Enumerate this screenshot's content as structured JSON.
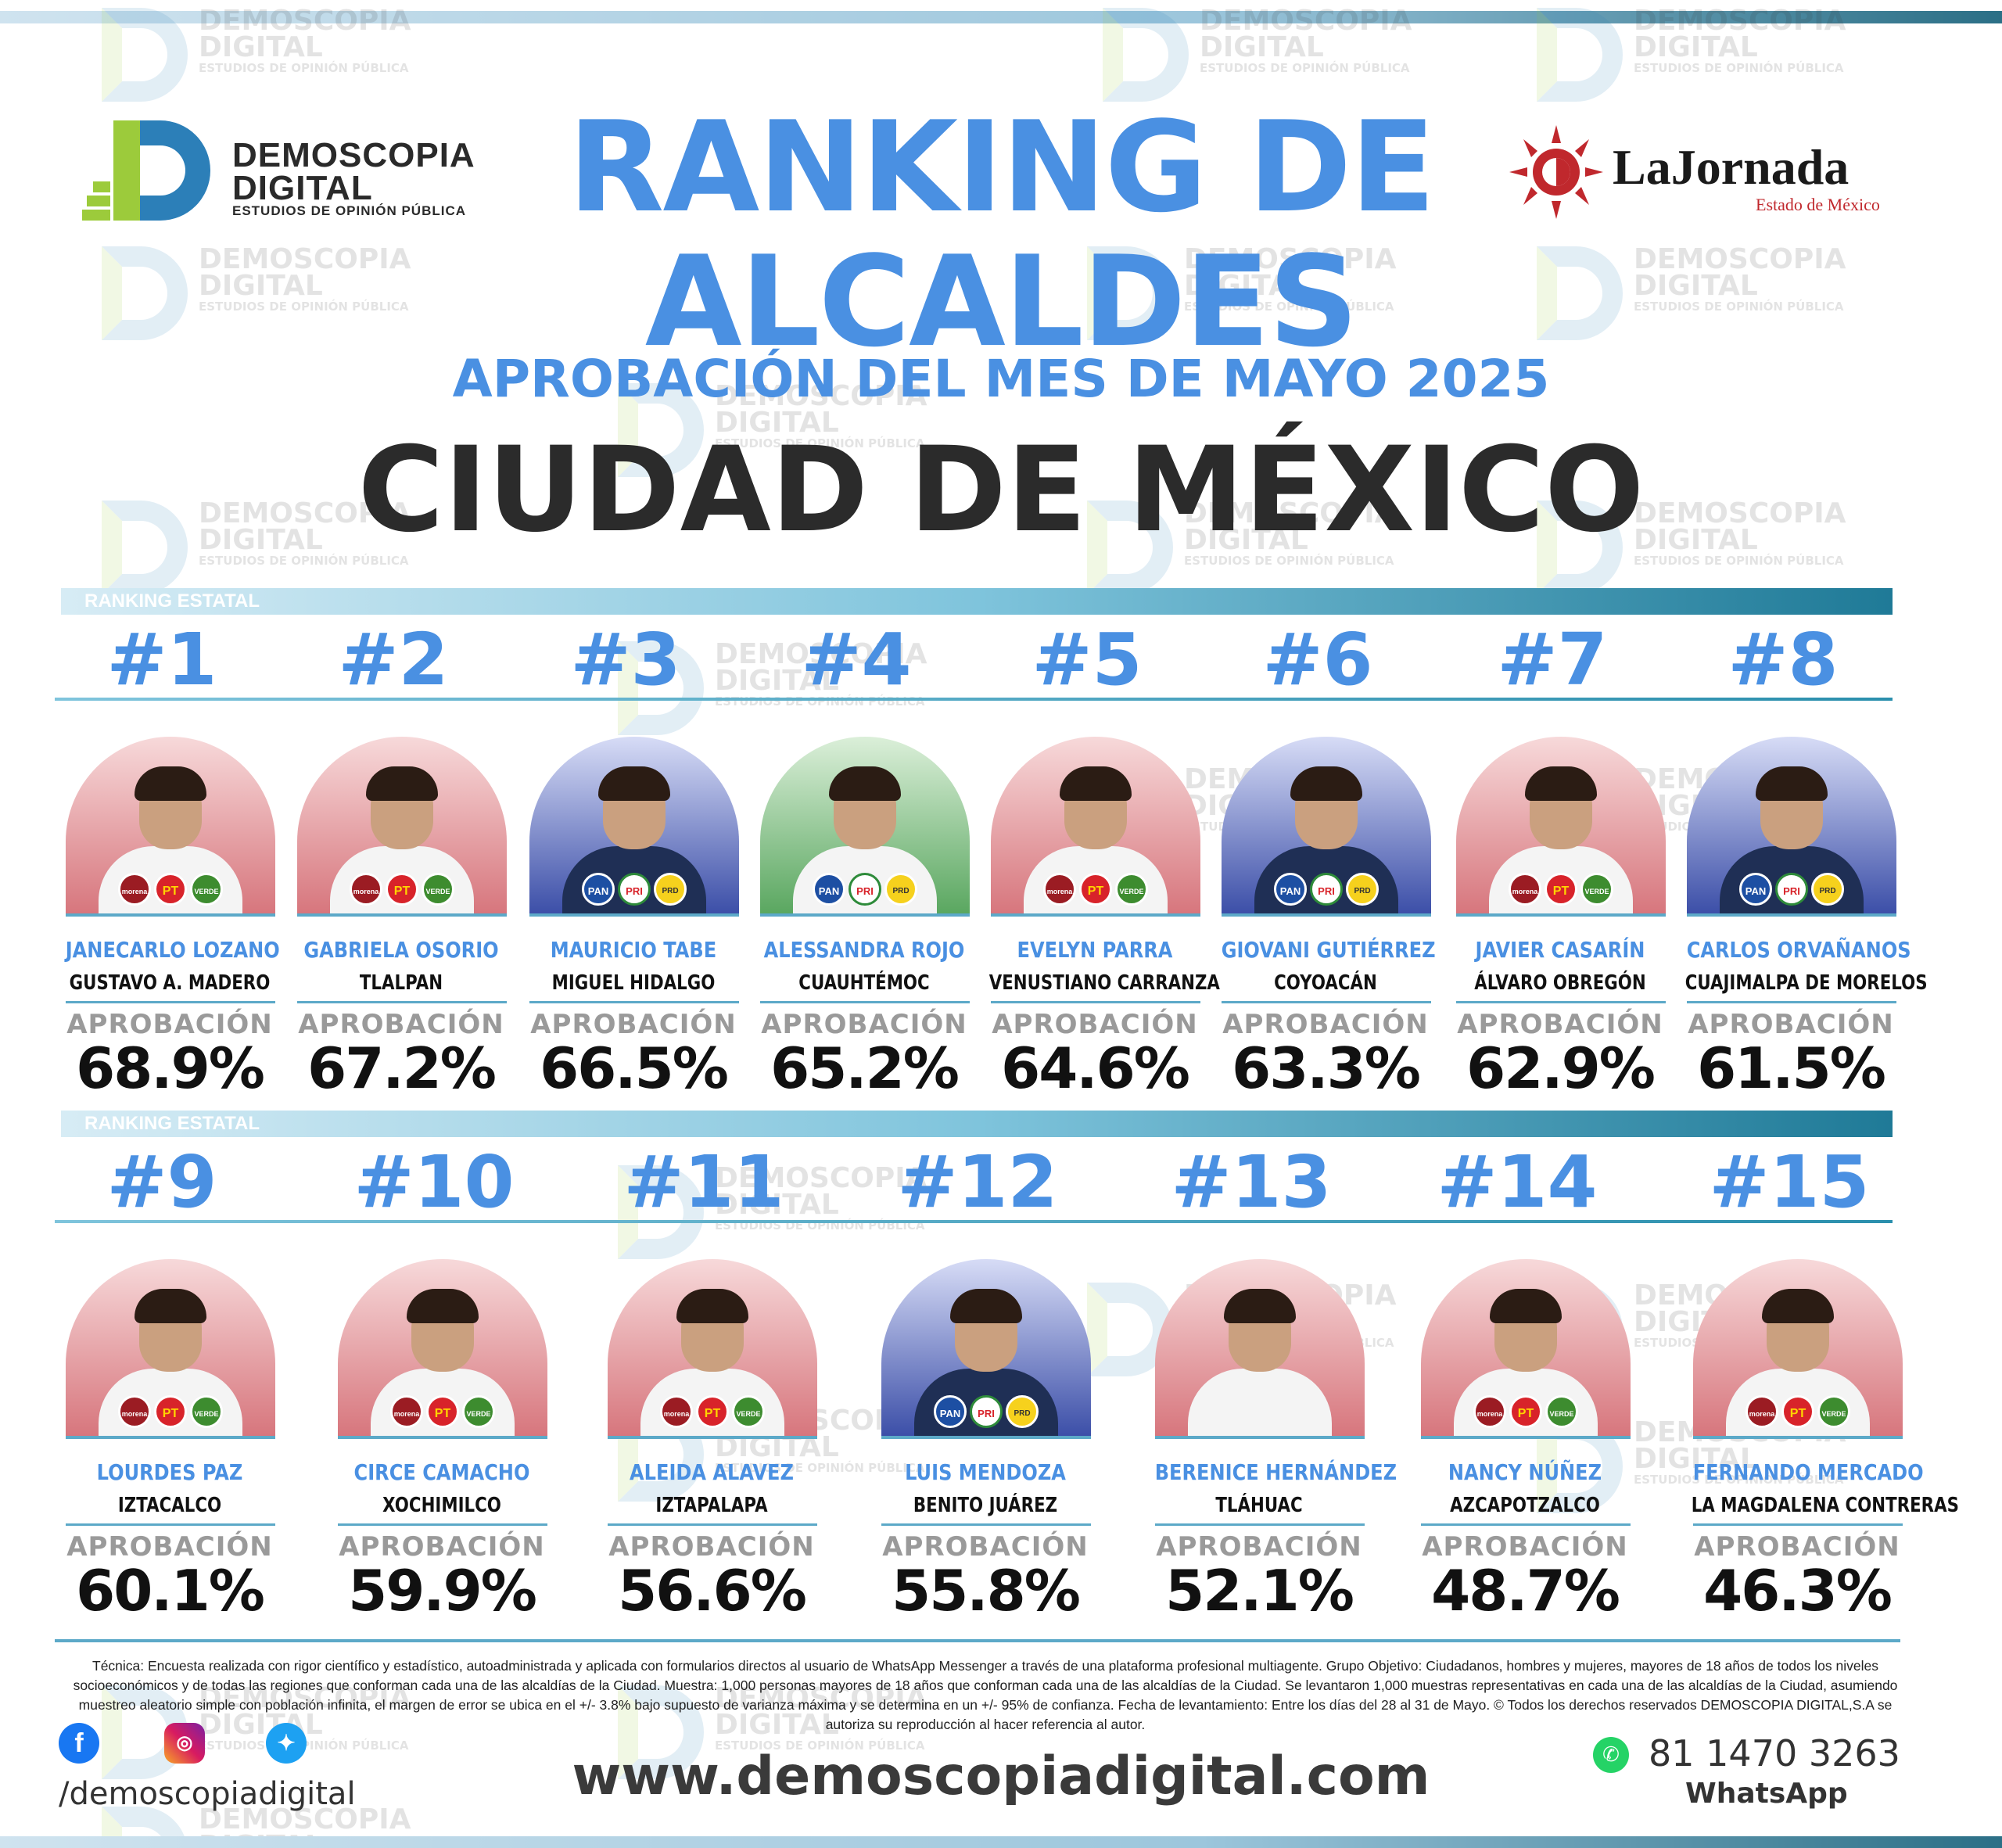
{
  "header": {
    "logo_left": {
      "name_line1": "DEMOSCOPIA",
      "name_line2": "DIGITAL",
      "tagline": "ESTUDIOS DE OPINIÓN PÚBLICA"
    },
    "logo_right": {
      "name": "LaJornada",
      "sub": "Estado de México"
    },
    "title_line1": "RANKING DE",
    "title_line2": "ALCALDES",
    "subtitle": "APROBACIÓN DEL MES DE MAYO 2025",
    "city": "CIUDAD DE MÉXICO"
  },
  "watermark": {
    "line1": "DEMOSCOPIA",
    "line2": "DIGITAL",
    "line3": "ESTUDIOS DE OPINIÓN PÚBLICA"
  },
  "section_label": "RANKING ESTATAL",
  "approval_label": "APROBACIÓN",
  "rows": [
    {
      "section_label": "RANKING ESTATAL",
      "cards": [
        {
          "rank": "#1",
          "name": "JANECARLO LOZANO",
          "municipality": "GUSTAVO A. MADERO",
          "approval": "68.9%",
          "bg": "red",
          "parties": [
            "morena",
            "pt",
            "verde"
          ]
        },
        {
          "rank": "#2",
          "name": "GABRIELA OSORIO",
          "municipality": "TLALPAN",
          "approval": "67.2%",
          "bg": "red",
          "parties": [
            "morena",
            "pt",
            "verde"
          ]
        },
        {
          "rank": "#3",
          "name": "MAURICIO TABE",
          "municipality": "MIGUEL HIDALGO",
          "approval": "66.5%",
          "bg": "blue",
          "parties": [
            "pan",
            "pri",
            "prd"
          ]
        },
        {
          "rank": "#4",
          "name": "ALESSANDRA ROJO",
          "municipality": "CUAUHTÉMOC",
          "approval": "65.2%",
          "bg": "green",
          "parties": [
            "pan",
            "pri",
            "prd"
          ]
        },
        {
          "rank": "#5",
          "name": "EVELYN PARRA",
          "municipality": "VENUSTIANO CARRANZA",
          "approval": "64.6%",
          "bg": "red",
          "parties": [
            "morena",
            "pt",
            "verde"
          ]
        },
        {
          "rank": "#6",
          "name": "GIOVANI GUTIÉRREZ",
          "municipality": "COYOACÁN",
          "approval": "63.3%",
          "bg": "blue",
          "parties": [
            "pan",
            "pri",
            "prd"
          ]
        },
        {
          "rank": "#7",
          "name": "JAVIER CASARÍN",
          "municipality": "ÁLVARO OBREGÓN",
          "approval": "62.9%",
          "bg": "red",
          "parties": [
            "morena",
            "pt",
            "verde"
          ]
        },
        {
          "rank": "#8",
          "name": "CARLOS ORVAÑANOS",
          "municipality": "CUAJIMALPA DE MORELOS",
          "approval": "61.5%",
          "bg": "blue",
          "parties": [
            "pan",
            "pri",
            "prd"
          ]
        }
      ]
    },
    {
      "section_label": "RANKING ESTATAL",
      "cards": [
        {
          "rank": "#9",
          "name": "LOURDES PAZ",
          "municipality": "IZTACALCO",
          "approval": "60.1%",
          "bg": "red",
          "parties": [
            "morena",
            "pt",
            "verde"
          ]
        },
        {
          "rank": "#10",
          "name": "CIRCE CAMACHO",
          "municipality": "XOCHIMILCO",
          "approval": "59.9%",
          "bg": "red",
          "parties": [
            "morena",
            "pt",
            "verde"
          ]
        },
        {
          "rank": "#11",
          "name": "ALEIDA ALAVEZ",
          "municipality": "IZTAPALAPA",
          "approval": "56.6%",
          "bg": "red",
          "parties": [
            "morena",
            "pt",
            "verde"
          ]
        },
        {
          "rank": "#12",
          "name": "LUIS MENDOZA",
          "municipality": "BENITO JUÁREZ",
          "approval": "55.8%",
          "bg": "blue",
          "parties": [
            "pan",
            "pri",
            "prd"
          ]
        },
        {
          "rank": "#13",
          "name": "BERENICE HERNÁNDEZ",
          "municipality": "TLÁHUAC",
          "approval": "52.1%",
          "bg": "red",
          "parties": []
        },
        {
          "rank": "#14",
          "name": "NANCY NÚÑEZ",
          "municipality": "AZCAPOTZALCO",
          "approval": "48.7%",
          "bg": "red",
          "parties": [
            "morena",
            "pt",
            "verde"
          ]
        },
        {
          "rank": "#15",
          "name": "FERNANDO MERCADO",
          "municipality": "LA MAGDALENA CONTRERAS",
          "approval": "46.3%",
          "bg": "red",
          "parties": [
            "morena",
            "pt",
            "verde"
          ]
        }
      ]
    }
  ],
  "party_labels": {
    "morena": "morena",
    "pt": "PT",
    "verde": "VERDE",
    "pan": "PAN",
    "pri": "PRI",
    "prd": "PRD"
  },
  "footer": {
    "methodology": "Técnica: Encuesta realizada con rigor científico y estadístico, autoadministrada y aplicada con formularios directos al usuario de WhatsApp Messenger a través de una plataforma profesional multiagente. Grupo Objetivo: Ciudadanos, hombres y mujeres, mayores de 18 años de todos los niveles socioeconómicos y de todas las regiones que conforman cada una de las alcaldías de la Ciudad. Muestra: 1,000 personas mayores de 18 años que conforman cada una de las alcaldías de la Ciudad. Se levantaron 1,000 muestras representativas en cada una de las alcaldías de la Ciudad, asumiendo muestreo aleatorio simple con población infinita, el margen de error se ubica en el +/- 3.8% bajo supuesto de varianza máxima y se determina en un +/- 95% de confianza. Fecha de levantamiento: Entre los días del 28 al 31 de Mayo. © Todos los derechos reservados DEMOSCOPIA DIGITAL,S.A se autoriza su reproducción al hacer referencia al autor.",
    "social_handle": "/demoscopiadigital",
    "website": "www.demoscopiadigital.com",
    "whatsapp_number": "81 1470 3263",
    "whatsapp_label": "WhatsApp",
    "icons": [
      "facebook-icon",
      "instagram-icon",
      "twitter-icon",
      "whatsapp-icon"
    ]
  },
  "colors": {
    "accent_blue": "#4a90e2",
    "teal": "#2b8fad",
    "dark_text": "#2b2b2b",
    "gray_label": "#9a9a9a",
    "jornada_red": "#c0282d"
  }
}
